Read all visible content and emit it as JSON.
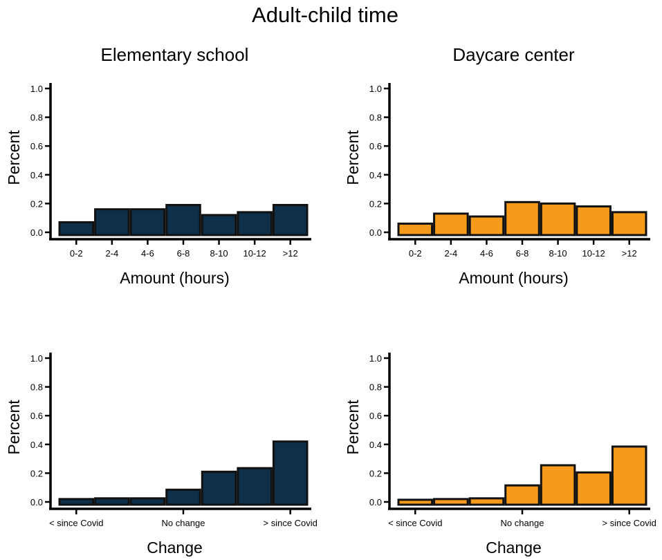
{
  "title": "Adult-child time",
  "colors": {
    "elementary": "#0d2f4a",
    "daycare": "#f59a1b",
    "outline": "#111111"
  },
  "chart_data": [
    {
      "type": "bar",
      "title": "Elementary school",
      "xlabel": "Amount (hours)",
      "ylabel": "Percent",
      "ylim": [
        0,
        1
      ],
      "yticks": [
        "0.0",
        "0.2",
        "0.4",
        "0.6",
        "0.8",
        "1.0"
      ],
      "categories": [
        "0-2",
        "2-4",
        "4-6",
        "6-8",
        "8-10",
        "10-12",
        ">12"
      ],
      "tick_labels": [
        "0-2",
        "2-4",
        "4-6",
        "6-8",
        "8-10",
        "10-12",
        ">12"
      ],
      "values": [
        0.07,
        0.16,
        0.16,
        0.19,
        0.12,
        0.14,
        0.19
      ],
      "color_key": "elementary"
    },
    {
      "type": "bar",
      "title": "Daycare center",
      "xlabel": "Amount (hours)",
      "ylabel": "Percent",
      "ylim": [
        0,
        1
      ],
      "yticks": [
        "0.0",
        "0.2",
        "0.4",
        "0.6",
        "0.8",
        "1.0"
      ],
      "categories": [
        "0-2",
        "2-4",
        "4-6",
        "6-8",
        "8-10",
        "10-12",
        ">12"
      ],
      "tick_labels": [
        "0-2",
        "2-4",
        "4-6",
        "6-8",
        "8-10",
        "10-12",
        ">12"
      ],
      "values": [
        0.06,
        0.13,
        0.11,
        0.21,
        0.2,
        0.18,
        0.14
      ],
      "color_key": "daycare"
    },
    {
      "type": "bar",
      "title": "",
      "xlabel": "Change",
      "ylabel": "Percent",
      "ylim": [
        0,
        1
      ],
      "yticks": [
        "0.0",
        "0.2",
        "0.4",
        "0.6",
        "0.8",
        "1.0"
      ],
      "categories": [
        "1",
        "2",
        "3",
        "4",
        "5",
        "6",
        "7"
      ],
      "tick_labels": [
        "< since Covid",
        "",
        "",
        "No change",
        "",
        "",
        "> since Covid"
      ],
      "values": [
        0.02,
        0.025,
        0.025,
        0.085,
        0.21,
        0.235,
        0.42
      ],
      "color_key": "elementary"
    },
    {
      "type": "bar",
      "title": "",
      "xlabel": "Change",
      "ylabel": "Percent",
      "ylim": [
        0,
        1
      ],
      "yticks": [
        "0.0",
        "0.2",
        "0.4",
        "0.6",
        "0.8",
        "1.0"
      ],
      "categories": [
        "1",
        "2",
        "3",
        "4",
        "5",
        "6",
        "7"
      ],
      "tick_labels": [
        "< since Covid",
        "",
        "",
        "No change",
        "",
        "",
        "> since Covid"
      ],
      "values": [
        0.015,
        0.02,
        0.025,
        0.115,
        0.255,
        0.205,
        0.385
      ],
      "color_key": "daycare"
    }
  ]
}
